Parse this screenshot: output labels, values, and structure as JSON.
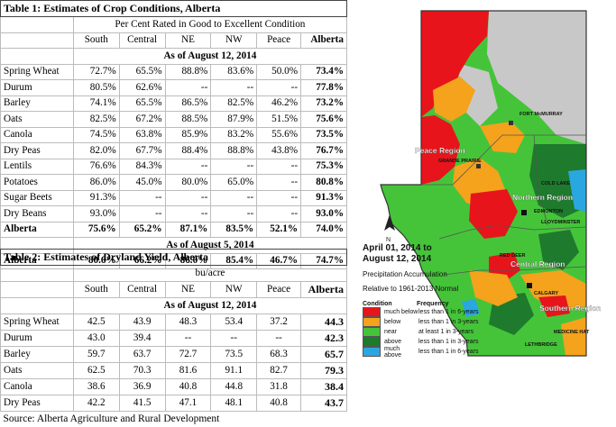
{
  "table1": {
    "title": "Table 1: Estimates of Crop Conditions, Alberta",
    "subtitle": "Per Cent Rated in Good to Excellent Condition",
    "columns": [
      "South",
      "Central",
      "NE",
      "NW",
      "Peace",
      "Alberta"
    ],
    "section1_label": "As of August 12, 2014",
    "rows": [
      {
        "crop": "Spring Wheat",
        "values": [
          "72.7%",
          "65.5%",
          "88.8%",
          "83.6%",
          "50.0%",
          "73.4%"
        ]
      },
      {
        "crop": "Durum",
        "values": [
          "80.5%",
          "62.6%",
          "--",
          "--",
          "--",
          "77.8%"
        ]
      },
      {
        "crop": "Barley",
        "values": [
          "74.1%",
          "65.5%",
          "86.5%",
          "82.5%",
          "46.2%",
          "73.2%"
        ]
      },
      {
        "crop": "Oats",
        "values": [
          "82.5%",
          "67.2%",
          "88.5%",
          "87.9%",
          "51.5%",
          "75.6%"
        ]
      },
      {
        "crop": "Canola",
        "values": [
          "74.5%",
          "63.8%",
          "85.9%",
          "83.2%",
          "55.6%",
          "73.5%"
        ]
      },
      {
        "crop": "Dry Peas",
        "values": [
          "82.0%",
          "67.7%",
          "88.4%",
          "88.8%",
          "43.8%",
          "76.7%"
        ]
      },
      {
        "crop": "Lentils",
        "values": [
          "76.6%",
          "84.3%",
          "--",
          "--",
          "--",
          "75.3%"
        ]
      },
      {
        "crop": "Potatoes",
        "values": [
          "86.0%",
          "45.0%",
          "80.0%",
          "65.0%",
          "--",
          "80.8%"
        ]
      },
      {
        "crop": "Sugar Beets",
        "values": [
          "91.3%",
          "--",
          "--",
          "--",
          "--",
          "91.3%"
        ]
      },
      {
        "crop": "Dry Beans",
        "values": [
          "93.0%",
          "--",
          "--",
          "--",
          "--",
          "93.0%"
        ]
      }
    ],
    "total1": {
      "crop": "Alberta",
      "values": [
        "75.6%",
        "65.2%",
        "87.1%",
        "83.5%",
        "52.1%",
        "74.0%"
      ]
    },
    "section2_label": "As of August 5, 2014",
    "total2": {
      "crop": "Alberta",
      "values": [
        "80.6%",
        "66.2%",
        "86.0%",
        "85.4%",
        "46.7%",
        "74.7%"
      ]
    }
  },
  "table2": {
    "title": "Table 2: Estimates of Dryland Yield, Alberta",
    "unit": "bu/acre",
    "columns": [
      "South",
      "Central",
      "NE",
      "NW",
      "Peace",
      "Alberta"
    ],
    "section_label": "As of August 12, 2014",
    "rows": [
      {
        "crop": "Spring Wheat",
        "values": [
          "42.5",
          "43.9",
          "48.3",
          "53.4",
          "37.2",
          "44.3"
        ]
      },
      {
        "crop": "Durum",
        "values": [
          "43.0",
          "39.4",
          "--",
          "--",
          "--",
          "42.3"
        ]
      },
      {
        "crop": "Barley",
        "values": [
          "59.7",
          "63.7",
          "72.7",
          "73.5",
          "68.3",
          "65.7"
        ]
      },
      {
        "crop": "Oats",
        "values": [
          "62.5",
          "70.3",
          "81.6",
          "91.1",
          "82.7",
          "79.3"
        ]
      },
      {
        "crop": "Canola",
        "values": [
          "38.6",
          "36.9",
          "40.8",
          "44.8",
          "31.8",
          "38.4"
        ]
      },
      {
        "crop": "Dry Peas",
        "values": [
          "42.2",
          "41.5",
          "47.1",
          "48.1",
          "40.8",
          "43.7"
        ]
      }
    ],
    "source": "Source: Alberta Agriculture and Rural Development"
  },
  "map": {
    "places": {
      "fort_mcmurray": "FORT McMURRAY",
      "grande_prairie": "GRANDE PRAIRIE",
      "edmonton": "EDMONTON",
      "cold_lake": "COLD LAKE",
      "lloydminster": "LLOYDMINSTER",
      "red_deer": "RED DEER",
      "calgary": "CALGARY",
      "medicine_hat": "MEDICINE HAT",
      "lethbridge": "LETHBRIDGE"
    },
    "regions": {
      "peace": "Peace Region",
      "northern": "Northern Region",
      "central": "Central Region",
      "southern": "Southern Region"
    },
    "north_arrow": "N"
  },
  "legend": {
    "title_line1": "April 01, 2014 to",
    "title_line2": "August 12, 2014",
    "desc_line1": "Precipitation Accumulation",
    "desc_line2": "Relative to 1961-2013 Normal",
    "header_condition": "Condition",
    "header_frequency": "Frequency",
    "items": [
      {
        "condition": "much below",
        "frequency": "less than 1 in 6-years",
        "color": "#e8141b"
      },
      {
        "condition": "below",
        "frequency": "less than 1 in 3-years",
        "color": "#f5a21c"
      },
      {
        "condition": "near",
        "frequency": "at least 1 in 3-years",
        "color": "#45c43a"
      },
      {
        "condition": "above",
        "frequency": "less than 1 in 3-years",
        "color": "#1e7a2c"
      },
      {
        "condition": "much above",
        "frequency": "less than 1 in 6-years",
        "color": "#2aa7e0"
      }
    ]
  }
}
